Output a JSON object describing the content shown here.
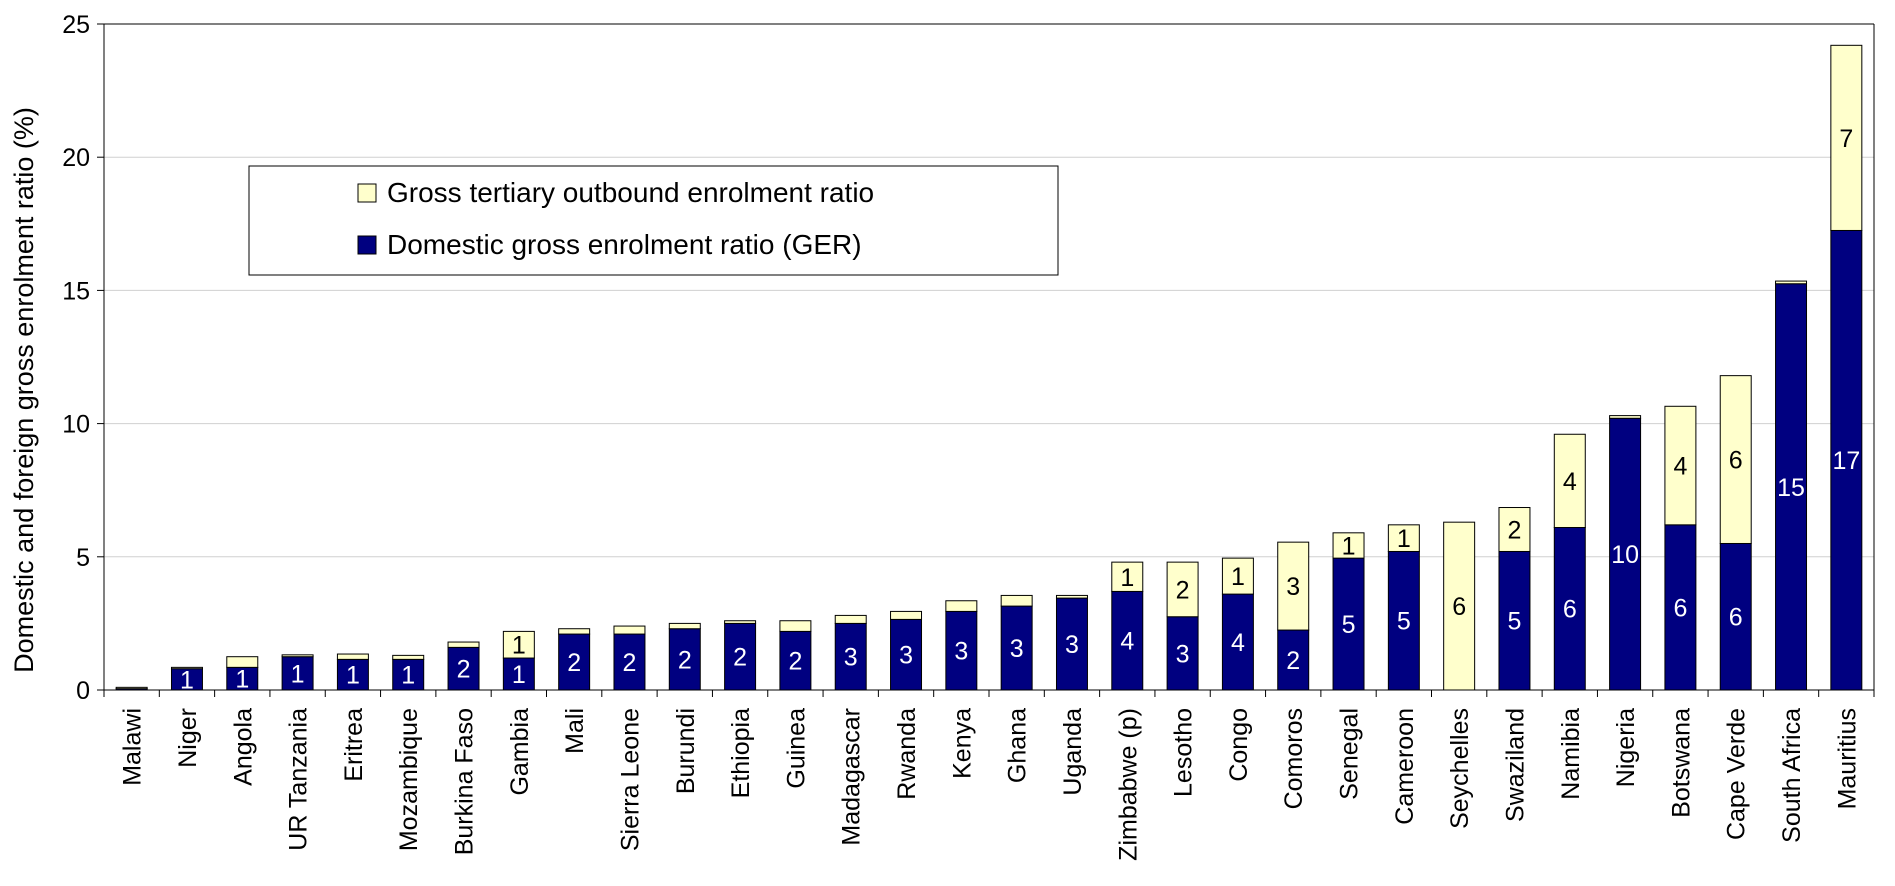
{
  "chart_data": {
    "type": "bar",
    "stacked": true,
    "ylabel": "Domestic and foreign gross enrolment ratio (%)",
    "xlabel": "",
    "ylim": [
      0,
      25
    ],
    "yticks": [
      0,
      5,
      10,
      15,
      20,
      25
    ],
    "grid": true,
    "legend_position": "top-left",
    "categories": [
      "Malawi",
      "Niger",
      "Angola",
      "UR Tanzania",
      "Eritrea",
      "Mozambique",
      "Burkina Faso",
      "Gambia",
      "Mali",
      "Sierra Leone",
      "Burundi",
      "Ethiopia",
      "Guinea",
      "Madagascar",
      "Rwanda",
      "Kenya",
      "Ghana",
      "Uganda",
      "Zimbabwe (p)",
      "Lesotho",
      "Congo",
      "Comoros",
      "Senegal",
      "Cameroon",
      "Seychelles",
      "Swaziland",
      "Namibia",
      "Nigeria",
      "Botswana",
      "Cape Verde",
      "South Africa",
      "Mauritius"
    ],
    "series": [
      {
        "name": "Domestic gross enrolment ratio (GER)",
        "color": "#000080",
        "label_color": "#ffffff",
        "values": [
          0.05,
          0.8,
          0.85,
          1.25,
          1.15,
          1.15,
          1.6,
          1.2,
          2.1,
          2.1,
          2.3,
          2.5,
          2.2,
          2.5,
          2.65,
          2.95,
          3.15,
          3.45,
          3.7,
          2.75,
          3.6,
          2.25,
          4.95,
          5.2,
          0.0,
          5.2,
          6.1,
          10.2,
          6.2,
          5.5,
          15.25,
          17.25
        ],
        "labels": [
          "",
          "1",
          "1",
          "1",
          "1",
          "1",
          "2",
          "1",
          "2",
          "2",
          "2",
          "2",
          "2",
          "3",
          "3",
          "3",
          "3",
          "3",
          "4",
          "3",
          "4",
          "2",
          "5",
          "5",
          "",
          "5",
          "6",
          "10",
          "6",
          "6",
          "15",
          "17"
        ]
      },
      {
        "name": "Gross tertiary outbound enrolment ratio",
        "color": "#ffffcc",
        "label_color": "#000000",
        "values": [
          0.05,
          0.05,
          0.4,
          0.07,
          0.2,
          0.15,
          0.2,
          1.0,
          0.2,
          0.3,
          0.2,
          0.1,
          0.4,
          0.3,
          0.3,
          0.4,
          0.4,
          0.1,
          1.1,
          2.05,
          1.35,
          3.3,
          0.95,
          1.0,
          6.3,
          1.65,
          3.5,
          0.1,
          4.45,
          6.3,
          0.1,
          6.95
        ],
        "labels": [
          "",
          "",
          "",
          "",
          "",
          "",
          "",
          "1",
          "",
          "",
          "",
          "",
          "",
          "",
          "",
          "",
          "",
          "",
          "1",
          "2",
          "1",
          "3",
          "1",
          "1",
          "6",
          "2",
          "4",
          "",
          "4",
          "6",
          "",
          "7"
        ]
      }
    ]
  }
}
